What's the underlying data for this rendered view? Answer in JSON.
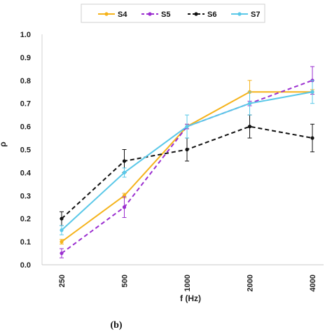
{
  "chart_data": {
    "type": "line",
    "categories": [
      "250",
      "500",
      "1000",
      "2000",
      "4000"
    ],
    "xlabel": "f (Hz)",
    "ylabel": "ρ",
    "ylim": [
      0,
      1.0
    ],
    "yticks": [
      "0.0",
      "0.1",
      "0.2",
      "0.3",
      "0.4",
      "0.5",
      "0.6",
      "0.7",
      "0.8",
      "0.9",
      "1.0"
    ],
    "grid": false,
    "legend_position": "top",
    "caption": "(b)",
    "series": [
      {
        "name": "S4",
        "color": "#F5B31B",
        "dash": "solid",
        "values": [
          0.1,
          0.3,
          0.6,
          0.75,
          0.75
        ],
        "errors": [
          0.01,
          0.01,
          0.01,
          0.05,
          0.01
        ]
      },
      {
        "name": "S5",
        "color": "#9B2FD0",
        "dash": "dashed",
        "values": [
          0.05,
          0.25,
          0.6,
          0.7,
          0.8
        ],
        "errors": [
          0.02,
          0.045,
          0.01,
          0.01,
          0.06
        ]
      },
      {
        "name": "S6",
        "color": "#111111",
        "dash": "dashed",
        "values": [
          0.2,
          0.45,
          0.5,
          0.6,
          0.55
        ],
        "errors": [
          0.03,
          0.05,
          0.05,
          0.05,
          0.06
        ]
      },
      {
        "name": "S7",
        "color": "#5AC8E8",
        "dash": "solid",
        "values": [
          0.15,
          0.4,
          0.6,
          0.7,
          0.75
        ],
        "errors": [
          0.02,
          0.02,
          0.05,
          0.05,
          0.05
        ]
      }
    ]
  }
}
